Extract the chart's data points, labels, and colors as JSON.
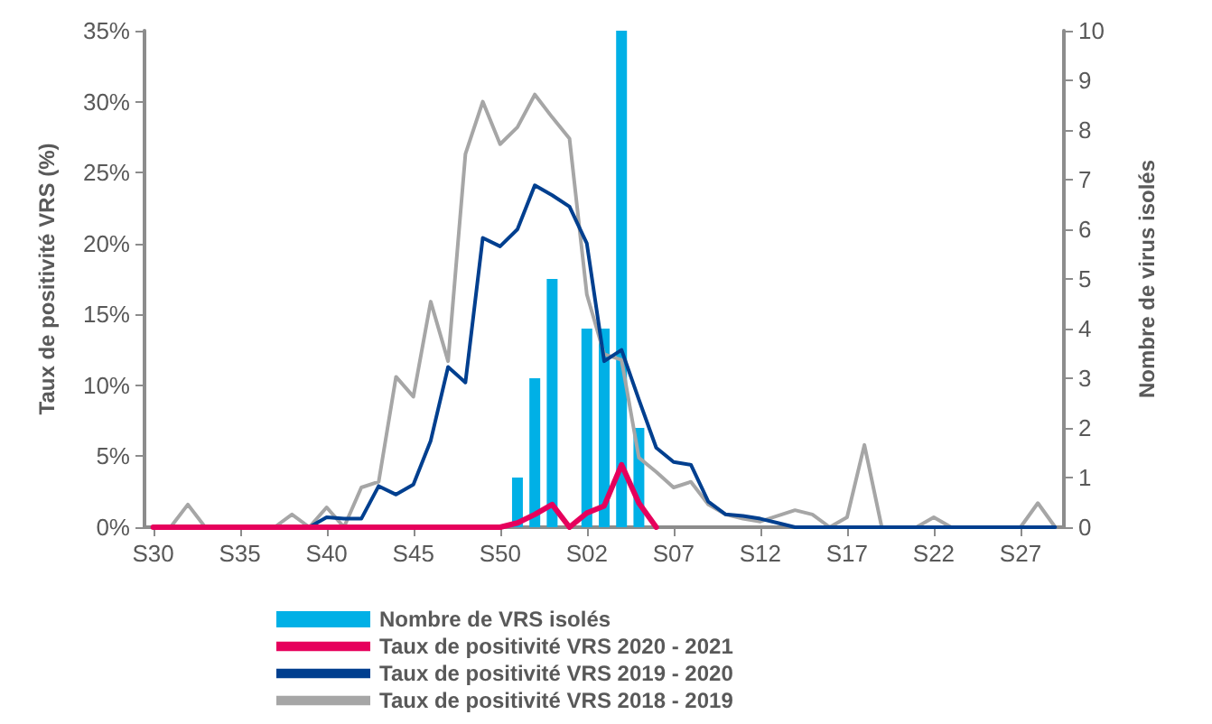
{
  "chart_data": {
    "type": "line",
    "ylabel": "Taux de positivité VRS (%)",
    "y2label": "Nombre de virus isolés",
    "categories": [
      "S30",
      null,
      null,
      null,
      null,
      "S35",
      null,
      null,
      null,
      null,
      "S40",
      null,
      null,
      null,
      null,
      "S45",
      null,
      null,
      null,
      null,
      "S50",
      null,
      null,
      null,
      null,
      "S02",
      null,
      null,
      null,
      null,
      "S07",
      null,
      null,
      null,
      null,
      "S12",
      null,
      null,
      null,
      null,
      "S17",
      null,
      null,
      null,
      null,
      "S22",
      null,
      null,
      null,
      null,
      "S27",
      null,
      null
    ],
    "series": [
      {
        "name": "Nombre de VRS isolés",
        "type": "bar",
        "axis": "y2",
        "color": "#00b0e6",
        "values": [
          0,
          0,
          0,
          0,
          0,
          0,
          0,
          0,
          0,
          0,
          0,
          0,
          0,
          0,
          0,
          0,
          0,
          0,
          0,
          0,
          0,
          1,
          3,
          5,
          0,
          4,
          4,
          10,
          2,
          0,
          0,
          0,
          0,
          0,
          0,
          0,
          0,
          0,
          0,
          0,
          0,
          0,
          0,
          0,
          0,
          0,
          0,
          0,
          0,
          0,
          0,
          0,
          0
        ]
      },
      {
        "name": "Taux de positivité VRS 2020 - 2021",
        "color": "#e6005c",
        "values": [
          0,
          0,
          0,
          0,
          0,
          0,
          0,
          0,
          0,
          0,
          0,
          0,
          0,
          0,
          0,
          0,
          0,
          0,
          0,
          0,
          0,
          0.3,
          0.9,
          1.6,
          0,
          1.0,
          1.5,
          4.4,
          1.7,
          0,
          null,
          null,
          null,
          null,
          null,
          null,
          null,
          null,
          null,
          null,
          null,
          null,
          null,
          null,
          null,
          null,
          null,
          null,
          null,
          null,
          null,
          null,
          null
        ]
      },
      {
        "name": "Taux de positivité VRS 2019 - 2020",
        "color": "#003f8f",
        "values": [
          null,
          null,
          null,
          null,
          null,
          null,
          null,
          null,
          0,
          0,
          0.7,
          0.6,
          0.6,
          2.9,
          2.3,
          3.0,
          6.1,
          11.3,
          10.2,
          20.4,
          19.8,
          21.0,
          24.1,
          23.4,
          22.6,
          20.0,
          11.7,
          12.5,
          9.0,
          5.6,
          4.6,
          4.4,
          1.8,
          0.9,
          0.8,
          0.6,
          0.3,
          0,
          0,
          0,
          0,
          0,
          0,
          0,
          0,
          0,
          0,
          0,
          0,
          0,
          0,
          0,
          0
        ]
      },
      {
        "name": "Taux de positivité VRS 2018 - 2019",
        "color": "#a6a6a6",
        "values": [
          0,
          0,
          1.6,
          0,
          0,
          0,
          0,
          0,
          0.9,
          0,
          1.4,
          0,
          2.8,
          3.2,
          10.6,
          9.2,
          15.9,
          11.7,
          26.3,
          30.0,
          27.0,
          28.2,
          30.5,
          28.9,
          27.4,
          16.4,
          12.2,
          11.8,
          4.9,
          3.9,
          2.8,
          3.2,
          1.6,
          0.9,
          0.6,
          0.4,
          0.8,
          1.2,
          0.9,
          0,
          0.7,
          5.8,
          0,
          0,
          0,
          0.7,
          0,
          0,
          0,
          0,
          0,
          1.7,
          0
        ]
      }
    ],
    "ylim": [
      0,
      35
    ],
    "yticks": [
      {
        "value": 0,
        "label": "0%"
      },
      {
        "value": 5,
        "label": "5%"
      },
      {
        "value": 10,
        "label": "10%"
      },
      {
        "value": 15,
        "label": "15%"
      },
      {
        "value": 20,
        "label": "20%"
      },
      {
        "value": 25,
        "label": "25%"
      },
      {
        "value": 30,
        "label": "30%"
      },
      {
        "value": 35,
        "label": "35%"
      }
    ],
    "y2lim": [
      0,
      10
    ],
    "y2ticks": [
      0,
      1,
      2,
      3,
      4,
      5,
      6,
      7,
      8,
      9,
      10
    ],
    "grid": false,
    "legend": "bottom",
    "marker": "none",
    "line_style": "solid"
  }
}
